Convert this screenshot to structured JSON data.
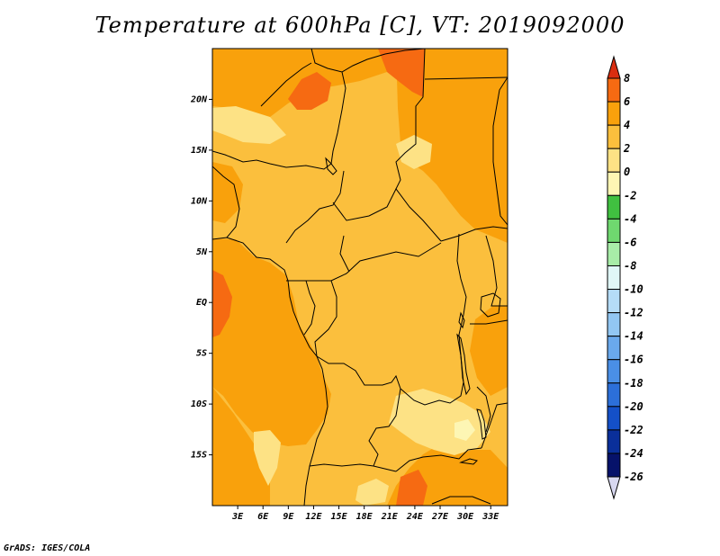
{
  "title": "Temperature at 600hPa [C], VT: 2019092000",
  "credit": "GrADS: IGES/COLA",
  "map": {
    "lon_range": [
      0,
      35
    ],
    "lat_range": [
      -20,
      25
    ],
    "lat_ticks": [
      {
        "value": 20,
        "label": "20N"
      },
      {
        "value": 15,
        "label": "15N"
      },
      {
        "value": 10,
        "label": "10N"
      },
      {
        "value": 5,
        "label": "5N"
      },
      {
        "value": 0,
        "label": "EQ"
      },
      {
        "value": -5,
        "label": "5S"
      },
      {
        "value": -10,
        "label": "10S"
      },
      {
        "value": -15,
        "label": "15S"
      }
    ],
    "lon_ticks": [
      {
        "value": 3,
        "label": "3E"
      },
      {
        "value": 6,
        "label": "6E"
      },
      {
        "value": 9,
        "label": "9E"
      },
      {
        "value": 12,
        "label": "12E"
      },
      {
        "value": 15,
        "label": "15E"
      },
      {
        "value": 18,
        "label": "18E"
      },
      {
        "value": 21,
        "label": "21E"
      },
      {
        "value": 24,
        "label": "24E"
      },
      {
        "value": 27,
        "label": "27E"
      },
      {
        "value": 30,
        "label": "30E"
      },
      {
        "value": 33,
        "label": "33E"
      }
    ]
  },
  "colorbar": {
    "labels": [
      "8",
      "6",
      "4",
      "2",
      "0",
      "-2",
      "-4",
      "-6",
      "-8",
      "-10",
      "-12",
      "-14",
      "-16",
      "-18",
      "-20",
      "-22",
      "-24",
      "-26"
    ],
    "colors": [
      "#ef3b1a",
      "#f66a12",
      "#f9a10c",
      "#fbbf3d",
      "#fde285",
      "#fdf6b4",
      "#40c040",
      "#6fd86f",
      "#a8eda8",
      "#e0f7f7",
      "#b5dcf7",
      "#92c7f3",
      "#6aa9ec",
      "#4a8fe6",
      "#2c6fd9",
      "#1450c8",
      "#0a2f9a",
      "#06126a"
    ],
    "top_color": "#d92d10",
    "bottom_color": "#d8d8f0"
  }
}
